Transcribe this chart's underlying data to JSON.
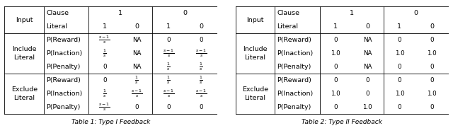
{
  "table1_data": [
    [
      "$\\frac{s-1}{s}$",
      "NA",
      "0",
      "0"
    ],
    [
      "$\\frac{1}{s}$",
      "NA",
      "$\\frac{s-1}{s}$",
      "$\\frac{s-1}{s}$"
    ],
    [
      "0",
      "NA",
      "$\\frac{1}{s}$",
      "$\\frac{1}{s}$"
    ],
    [
      "0",
      "$\\frac{1}{s}$",
      "$\\frac{1}{s}$",
      "$\\frac{1}{s}$"
    ],
    [
      "$\\frac{1}{s}$",
      "$\\frac{s-1}{s}$",
      "$\\frac{s-1}{s}$",
      "$\\frac{s-1}{s}$"
    ],
    [
      "$\\frac{s-1}{s}$",
      "0",
      "0",
      "0"
    ]
  ],
  "table2_data": [
    [
      "0",
      "NA",
      "0",
      "0"
    ],
    [
      "1.0",
      "NA",
      "1.0",
      "1.0"
    ],
    [
      "0",
      "NA",
      "0",
      "0"
    ],
    [
      "0",
      "0",
      "0",
      "0"
    ],
    [
      "1.0",
      "0",
      "1.0",
      "1.0"
    ],
    [
      "0",
      "1.0",
      "0",
      "0"
    ]
  ],
  "caption1": "Table 1: Type I Feedback",
  "caption2": "Table 2: Type II Feedback",
  "fontsize": 6.8,
  "caption_fontsize": 6.5,
  "lw": 0.6
}
